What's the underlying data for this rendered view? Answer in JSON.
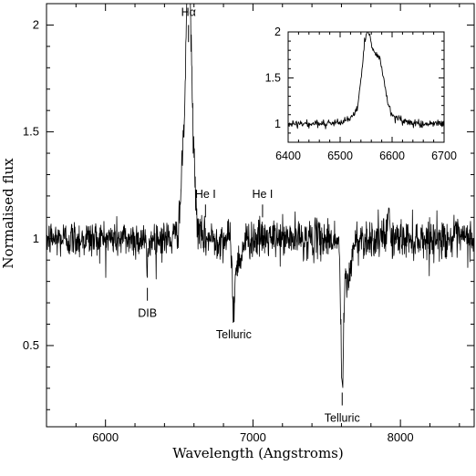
{
  "chart_data": [
    {
      "type": "line",
      "title": "",
      "xlabel": "Wavelength (Angstroms)",
      "ylabel": "Normalised flux",
      "xlim": [
        5600,
        8500
      ],
      "ylim": [
        0.12,
        2.1
      ],
      "x_ticks": [
        6000,
        7000,
        8000
      ],
      "x_tick_labels": [
        "6000",
        "7000",
        "8000"
      ],
      "y_ticks": [
        0.5,
        1,
        1.5,
        2
      ],
      "y_tick_labels": [
        "0.5",
        "1",
        "1.5",
        "2"
      ],
      "grid": false,
      "line_color": "#000000",
      "series": [
        {
          "noise_sigma": 0.045,
          "continuum": 1.0,
          "features": [
            {
              "center": 6563,
              "depth": 0.85,
              "width": 12,
              "kind": "emission"
            },
            {
              "center": 6545,
              "depth": 0.55,
              "width": 25,
              "kind": "emission"
            },
            {
              "center": 6585,
              "depth": 0.45,
              "width": 20,
              "kind": "emission"
            },
            {
              "center": 6284,
              "depth": -0.12,
              "width": 8,
              "kind": "absorption"
            },
            {
              "center": 6870,
              "depth": -0.28,
              "width": 9,
              "kind": "absorption"
            },
            {
              "center": 6900,
              "depth": -0.1,
              "width": 25,
              "kind": "absorption"
            },
            {
              "center": 7605,
              "depth": -0.62,
              "width": 9,
              "kind": "absorption"
            },
            {
              "center": 7640,
              "depth": -0.2,
              "width": 25,
              "kind": "absorption"
            },
            {
              "center": 7920,
              "depth": 0.2,
              "width": 5,
              "kind": "emission"
            }
          ]
        }
      ],
      "annotations": [
        {
          "text": "Hα",
          "x": 6563,
          "tick_from": 1.92,
          "tick_to": 2.0,
          "label_y": 2.05,
          "position": "above"
        },
        {
          "text": "He I",
          "x": 6678,
          "tick_from": 1.1,
          "tick_to": 1.16,
          "label_y": 1.2,
          "position": "above"
        },
        {
          "text": "He I",
          "x": 7065,
          "tick_from": 1.1,
          "tick_to": 1.16,
          "label_y": 1.2,
          "position": "above"
        },
        {
          "text": "DIB",
          "x": 6284,
          "tick_from": 0.71,
          "tick_to": 0.77,
          "label_y": 0.66,
          "position": "below"
        },
        {
          "text": "Telluric",
          "x": 6870,
          "tick_from": 0.61,
          "tick_to": 0.67,
          "label_y": 0.56,
          "position": "below"
        },
        {
          "text": "Telluric",
          "x": 7605,
          "tick_from": 0.22,
          "tick_to": 0.28,
          "label_y": 0.17,
          "position": "below"
        }
      ]
    },
    {
      "type": "line",
      "title": "",
      "xlabel": "",
      "ylabel": "",
      "xlim": [
        6400,
        6700
      ],
      "ylim": [
        0.8,
        2.0
      ],
      "x_ticks": [
        6400,
        6500,
        6600,
        6700
      ],
      "x_tick_labels": [
        "6400",
        "6500",
        "6600",
        "6700"
      ],
      "y_ticks": [
        1,
        1.5,
        2
      ],
      "y_tick_labels": [
        "1",
        "1.5",
        "2"
      ],
      "grid": false,
      "line_color": "#000000",
      "series": [
        {
          "noise_sigma": 0.02,
          "continuum": 1.0,
          "features": [
            {
              "center": 6552,
              "depth": 0.8,
              "width": 9,
              "kind": "emission"
            },
            {
              "center": 6575,
              "depth": 0.52,
              "width": 10,
              "kind": "emission"
            },
            {
              "center": 6562,
              "depth": 0.18,
              "width": 30,
              "kind": "emission"
            }
          ]
        }
      ]
    }
  ]
}
